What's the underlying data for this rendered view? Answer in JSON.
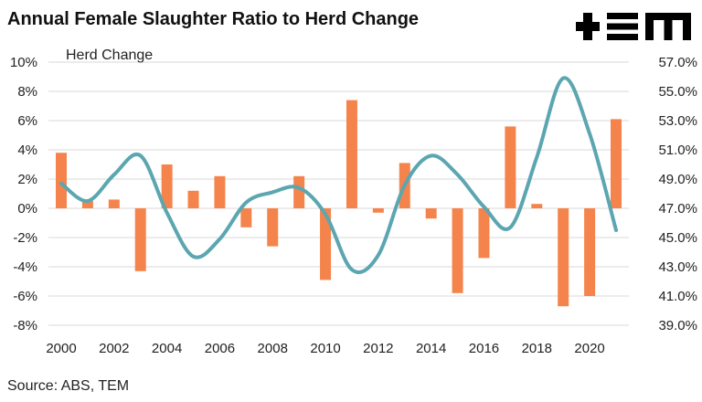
{
  "title": "Annual Female Slaughter Ratio to Herd Change",
  "source": "Source: ABS, TEM",
  "logo_text": "+EM",
  "colors": {
    "bar": "#F5844C",
    "line": "#5BA6B0",
    "grid": "#D9D9D9"
  },
  "chart_data": {
    "type": "bar+line",
    "title": "Annual Female Slaughter Ratio to Herd Change",
    "annotation": "Herd Change",
    "x_ticks": [
      "2000",
      "2002",
      "2004",
      "2006",
      "2008",
      "2010",
      "2012",
      "2014",
      "2016",
      "2018",
      "2020"
    ],
    "left_axis": {
      "ylim": [
        -8,
        10
      ],
      "ticks": [
        "10%",
        "8%",
        "6%",
        "4%",
        "2%",
        "0%",
        "-2%",
        "-4%",
        "-6%",
        "-8%"
      ]
    },
    "right_axis": {
      "ylim": [
        39,
        57
      ],
      "ticks": [
        "57.0%",
        "55.0%",
        "53.0%",
        "51.0%",
        "49.0%",
        "47.0%",
        "45.0%",
        "43.0%",
        "41.0%",
        "39.0%"
      ]
    },
    "grid": true,
    "series": [
      {
        "axis": "left",
        "type": "bar",
        "x": [
          2000,
          2001,
          2002,
          2003,
          2004,
          2005,
          2006,
          2007,
          2008,
          2009,
          2010,
          2011,
          2012,
          2013,
          2014,
          2015,
          2016,
          2017,
          2018,
          2019,
          2020,
          2021
        ],
        "values": [
          3.8,
          0.5,
          0.6,
          -4.3,
          3.0,
          1.2,
          2.2,
          -1.3,
          -2.6,
          2.2,
          -4.9,
          7.4,
          -0.3,
          3.1,
          -0.7,
          -5.8,
          -3.4,
          5.6,
          0.3,
          -6.7,
          -6.0,
          6.1
        ]
      },
      {
        "axis": "right",
        "type": "line",
        "x": [
          2000,
          2001,
          2002,
          2003,
          2004,
          2005,
          2006,
          2007,
          2008,
          2009,
          2010,
          2011,
          2012,
          2013,
          2014,
          2015,
          2016,
          2017,
          2018,
          2019,
          2020,
          2021
        ],
        "values": [
          48.7,
          47.5,
          49.3,
          50.6,
          46.7,
          43.7,
          44.9,
          47.4,
          48.1,
          48.4,
          46.6,
          42.8,
          43.8,
          48.6,
          50.6,
          49.3,
          47.1,
          45.7,
          50.5,
          55.9,
          52.1,
          45.5
        ]
      }
    ]
  }
}
